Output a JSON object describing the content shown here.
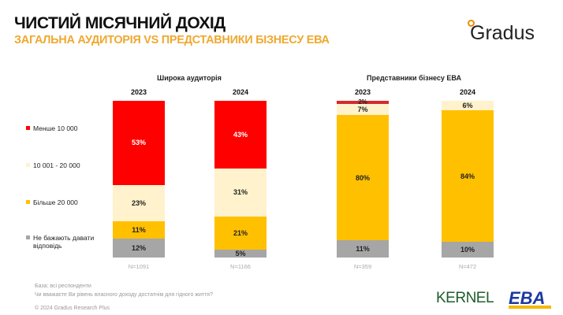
{
  "header": {
    "title": "ЧИСТИЙ МІСЯЧНИЙ ДОХІД",
    "subtitle": "ЗАГАЛЬНА АУДИТОРІЯ VS ПРЕДСТАВНИКИ БІЗНЕСУ ЕВА",
    "logo": "Gradus"
  },
  "colors": {
    "red": "#ff0000",
    "cream": "#fff2cc",
    "yellow": "#ffc000",
    "grey": "#a6a6a6",
    "eba_red": "#d42a2a"
  },
  "chart_data": {
    "type": "bar",
    "stacked": true,
    "percent": true,
    "legend": [
      "Менше 10 000",
      "10 001 - 20 000",
      "Більше 20 000",
      "Не бажають давати відповідь"
    ],
    "groups": [
      {
        "title": "Широка аудиторія",
        "bars": [
          {
            "year": "2023",
            "n": "N=1091",
            "values": [
              53,
              23,
              11,
              12
            ]
          },
          {
            "year": "2024",
            "n": "N=1166",
            "values": [
              43,
              31,
              21,
              5
            ]
          }
        ]
      },
      {
        "title": "Представники бізнесу ЕВА",
        "bars": [
          {
            "year": "2023",
            "n": "N=359",
            "values": [
              2,
              7,
              80,
              11
            ]
          },
          {
            "year": "2024",
            "n": "N=472",
            "values": [
              0,
              6,
              84,
              10
            ]
          }
        ]
      }
    ],
    "ylim": [
      0,
      100
    ]
  },
  "footer": {
    "base": "База: всі респонденти",
    "question": "Чи вважаєте Ви рівень власного доходу достатнім для гідного життя?",
    "copyright": "© 2024 Gradus Research Plus",
    "kernel": "KERNEL",
    "eba": "EBA"
  }
}
